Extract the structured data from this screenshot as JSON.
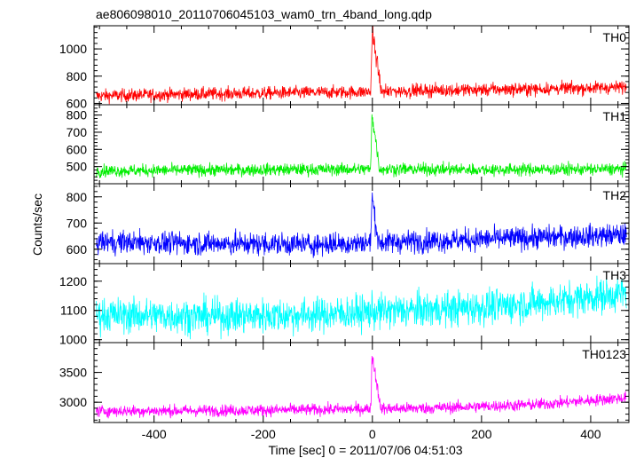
{
  "chart_data": {
    "type": "line",
    "title": "ae806098010_20110706045103_wam0_trn_4band_long.qdp",
    "xlabel": "Time [sec] 0 = 2011/07/06 04:51:03",
    "ylabel": "Counts/sec",
    "xlim": [
      -510,
      470
    ],
    "xticks": [
      -400,
      -200,
      0,
      200,
      400
    ],
    "panels": [
      {
        "name": "TH0",
        "color": "#ff0000",
        "ylim": [
          590,
          1170
        ],
        "yticks": [
          600,
          800,
          1000
        ],
        "baseline": [
          [
            -510,
            655
          ],
          [
            -300,
            670
          ],
          [
            -100,
            680
          ],
          [
            0,
            685
          ],
          [
            100,
            695
          ],
          [
            300,
            705
          ],
          [
            470,
            720
          ]
        ],
        "noise": 24,
        "burst": {
          "start": -3,
          "end": 15,
          "peak": 1170
        }
      },
      {
        "name": "TH1",
        "color": "#00ee00",
        "ylim": [
          400,
          860
        ],
        "yticks": [
          500,
          600,
          700,
          800
        ],
        "baseline": [
          [
            -510,
            475
          ],
          [
            -300,
            480
          ],
          [
            0,
            485
          ],
          [
            200,
            482
          ],
          [
            470,
            485
          ]
        ],
        "noise": 18,
        "burst": {
          "start": -3,
          "end": 12,
          "peak": 840
        }
      },
      {
        "name": "TH2",
        "color": "#0000ff",
        "ylim": [
          545,
          850
        ],
        "yticks": [
          600,
          700,
          800
        ],
        "baseline": [
          [
            -510,
            628
          ],
          [
            -300,
            622
          ],
          [
            -100,
            618
          ],
          [
            0,
            625
          ],
          [
            200,
            638
          ],
          [
            470,
            655
          ]
        ],
        "noise": 22,
        "burst": {
          "start": -3,
          "end": 10,
          "peak": 820
        }
      },
      {
        "name": "TH3",
        "color": "#00ffff",
        "ylim": [
          990,
          1260
        ],
        "yticks": [
          1000,
          1100,
          1200
        ],
        "baseline": [
          [
            -510,
            1085
          ],
          [
            -300,
            1080
          ],
          [
            -100,
            1085
          ],
          [
            0,
            1095
          ],
          [
            200,
            1110
          ],
          [
            300,
            1125
          ],
          [
            470,
            1160
          ]
        ],
        "noise": 30,
        "burst": null
      },
      {
        "name": "TH0123",
        "color": "#ff00ff",
        "ylim": [
          2660,
          4000
        ],
        "yticks": [
          3000,
          3500
        ],
        "baseline": [
          [
            -510,
            2850
          ],
          [
            -300,
            2860
          ],
          [
            -100,
            2875
          ],
          [
            0,
            2890
          ],
          [
            100,
            2900
          ],
          [
            300,
            2960
          ],
          [
            470,
            3080
          ]
        ],
        "noise": 50,
        "burst": {
          "start": -3,
          "end": 14,
          "peak": 3900
        }
      }
    ]
  }
}
